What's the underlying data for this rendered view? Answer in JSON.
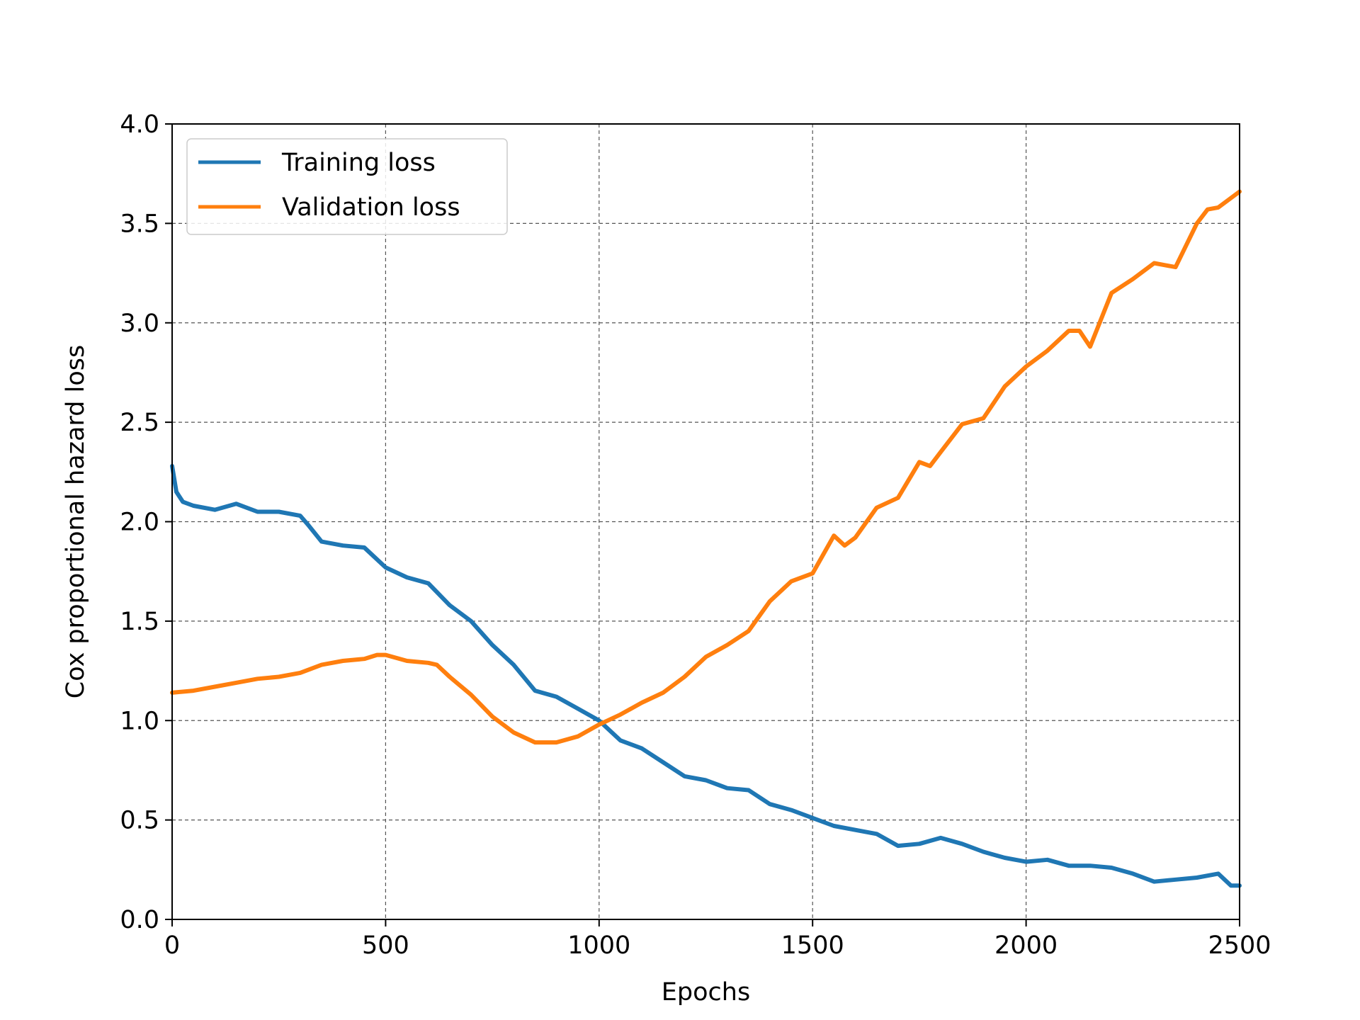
{
  "chart_data": {
    "type": "line",
    "title": "",
    "xlabel": "Epochs",
    "ylabel": "Cox proportional hazard loss",
    "xlim": [
      0,
      2500
    ],
    "ylim": [
      0,
      4.0
    ],
    "xticks": [
      0,
      500,
      1000,
      1500,
      2000,
      2500
    ],
    "xtick_labels": [
      "0",
      "500",
      "1000",
      "1500",
      "2000",
      "2500"
    ],
    "yticks": [
      0,
      0.5,
      1.0,
      1.5,
      2.0,
      2.5,
      3.0,
      3.5,
      4.0
    ],
    "ytick_labels": [
      "0.0",
      "0.5",
      "1.0",
      "1.5",
      "2.0",
      "2.5",
      "3.0",
      "3.5",
      "4.0"
    ],
    "grid": true,
    "legend_position": "top-left",
    "series": [
      {
        "name": "Training loss",
        "color": "#1f77b4",
        "x": [
          0,
          10,
          25,
          50,
          100,
          150,
          200,
          250,
          300,
          320,
          350,
          400,
          450,
          500,
          550,
          600,
          650,
          700,
          750,
          800,
          850,
          900,
          950,
          1000,
          1050,
          1100,
          1150,
          1200,
          1250,
          1300,
          1350,
          1400,
          1450,
          1500,
          1550,
          1600,
          1650,
          1700,
          1750,
          1800,
          1850,
          1900,
          1950,
          2000,
          2050,
          2100,
          2150,
          2200,
          2250,
          2300,
          2350,
          2400,
          2450,
          2480,
          2500
        ],
        "y": [
          2.28,
          2.15,
          2.1,
          2.08,
          2.06,
          2.09,
          2.05,
          2.05,
          2.03,
          1.98,
          1.9,
          1.88,
          1.87,
          1.77,
          1.72,
          1.69,
          1.58,
          1.5,
          1.38,
          1.28,
          1.15,
          1.12,
          1.06,
          1.0,
          0.9,
          0.86,
          0.79,
          0.72,
          0.7,
          0.66,
          0.65,
          0.58,
          0.55,
          0.51,
          0.47,
          0.45,
          0.43,
          0.37,
          0.38,
          0.41,
          0.38,
          0.34,
          0.31,
          0.29,
          0.3,
          0.27,
          0.27,
          0.26,
          0.23,
          0.19,
          0.2,
          0.21,
          0.23,
          0.17,
          0.17
        ]
      },
      {
        "name": "Validation loss",
        "color": "#ff7f0e",
        "x": [
          0,
          50,
          100,
          150,
          200,
          250,
          300,
          350,
          400,
          450,
          480,
          500,
          550,
          600,
          620,
          650,
          700,
          750,
          800,
          850,
          900,
          950,
          1000,
          1050,
          1100,
          1150,
          1200,
          1250,
          1300,
          1350,
          1400,
          1450,
          1500,
          1550,
          1575,
          1600,
          1650,
          1700,
          1750,
          1775,
          1800,
          1850,
          1900,
          1950,
          2000,
          2050,
          2100,
          2125,
          2150,
          2200,
          2250,
          2300,
          2325,
          2350,
          2400,
          2425,
          2450,
          2500
        ],
        "y": [
          1.14,
          1.15,
          1.17,
          1.19,
          1.21,
          1.22,
          1.24,
          1.28,
          1.3,
          1.31,
          1.33,
          1.33,
          1.3,
          1.29,
          1.28,
          1.22,
          1.13,
          1.02,
          0.94,
          0.89,
          0.89,
          0.92,
          0.98,
          1.03,
          1.09,
          1.14,
          1.22,
          1.32,
          1.38,
          1.45,
          1.6,
          1.7,
          1.74,
          1.93,
          1.88,
          1.92,
          2.07,
          2.12,
          2.3,
          2.28,
          2.35,
          2.49,
          2.52,
          2.68,
          2.78,
          2.86,
          2.96,
          2.96,
          2.88,
          3.15,
          3.22,
          3.3,
          3.29,
          3.28,
          3.5,
          3.57,
          3.58,
          3.66
        ]
      }
    ]
  }
}
